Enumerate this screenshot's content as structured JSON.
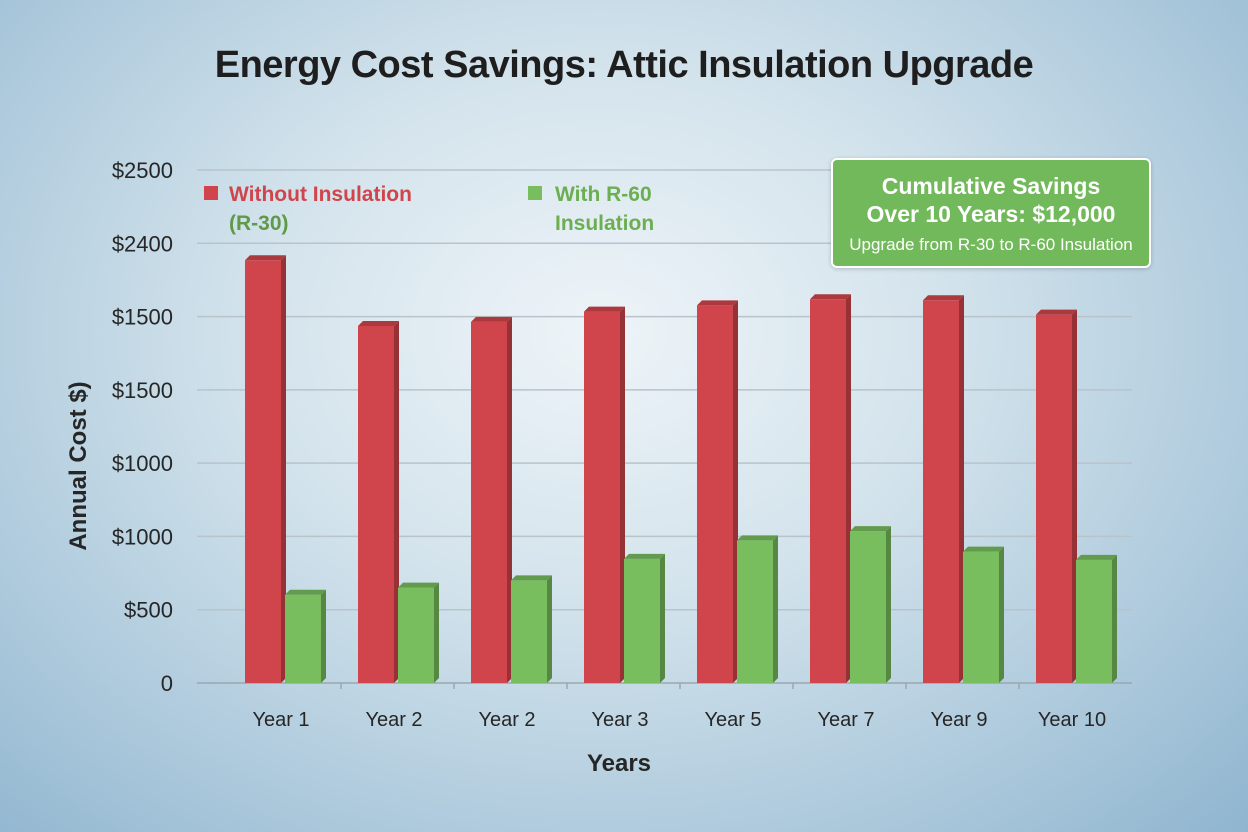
{
  "chart_data": {
    "type": "bar",
    "title": "Energy Cost Savings: Attic Insulation Upgrade",
    "xlabel": "Years",
    "ylabel": "Annual Cost $)",
    "ylim": [
      0,
      2500
    ],
    "grid": true,
    "y_tick_labels": [
      "0",
      "$500",
      "$1000",
      "$1000",
      "$1500",
      "$1500",
      "$2400",
      "$2500"
    ],
    "categories": [
      "Year 1",
      "Year 2",
      "Year 2",
      "Year 3",
      "Year 5",
      "Year 7",
      "Year 9",
      "Year 10"
    ],
    "series": [
      {
        "name": "Without Insulation (R-30)",
        "legend_line1": "Without Insulation",
        "legend_line2": "(R-30)",
        "color": "#d0454b",
        "values": [
          2060,
          1740,
          1760,
          1810,
          1840,
          1870,
          1865,
          1795
        ]
      },
      {
        "name": "With R-60 Insulation",
        "legend_line1": "With R-60",
        "legend_line2": "Insulation",
        "color": "#78bd5e",
        "values": [
          430,
          465,
          500,
          605,
          695,
          740,
          640,
          600
        ]
      }
    ],
    "legend_position": "top-left",
    "annotation": {
      "line1": "Cumulative Savings",
      "line2": "Over 10 Years: $12,000",
      "line3": "Upgrade from R-30 to R-60 Insulation",
      "color": "#72b95c"
    }
  }
}
